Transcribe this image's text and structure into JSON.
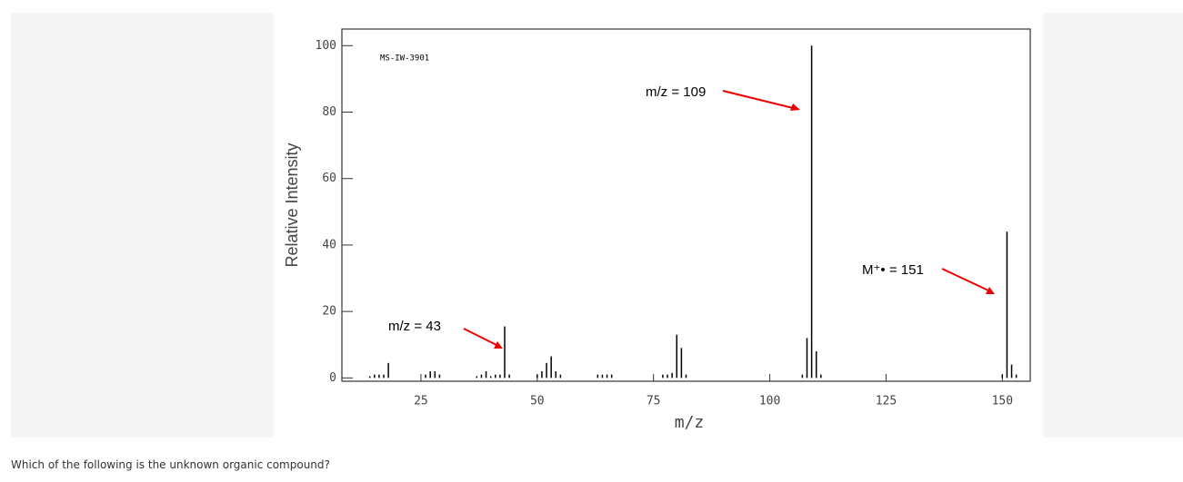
{
  "chart_data": {
    "type": "bar",
    "code": "MS-IW-3901",
    "x_label": "m/z",
    "y_label": "Relative Intensity",
    "annotations": [
      "m/z = 109",
      "m/z = 43",
      "M⁺• = 151"
    ],
    "color": "#000000",
    "x": [
      14,
      15,
      16,
      17,
      18,
      26,
      27,
      28,
      29,
      37,
      38,
      39,
      40,
      41,
      42,
      43,
      44,
      50,
      51,
      52,
      53,
      54,
      55,
      63,
      64,
      65,
      66,
      77,
      78,
      79,
      80,
      81,
      82,
      107,
      108,
      109,
      110,
      111,
      150,
      151,
      152,
      153
    ],
    "values": [
      0.5,
      1,
      1,
      1,
      4.5,
      1,
      2,
      2,
      1,
      0.5,
      1,
      2,
      0.5,
      1,
      1,
      15.5,
      1,
      1,
      2,
      4.5,
      6.5,
      2,
      1,
      1,
      1,
      1,
      1,
      1,
      1,
      1.5,
      13,
      9,
      1,
      1,
      12,
      100,
      8,
      1,
      1,
      44,
      4,
      1
    ],
    "xlim": [
      8,
      156
    ],
    "ylim": [
      -1,
      105
    ],
    "xticks": [
      25,
      50,
      75,
      100,
      125,
      150
    ],
    "yticks": [
      0,
      20,
      40,
      60,
      80,
      100
    ]
  },
  "question": "Which of the following is the unknown organic compound?"
}
